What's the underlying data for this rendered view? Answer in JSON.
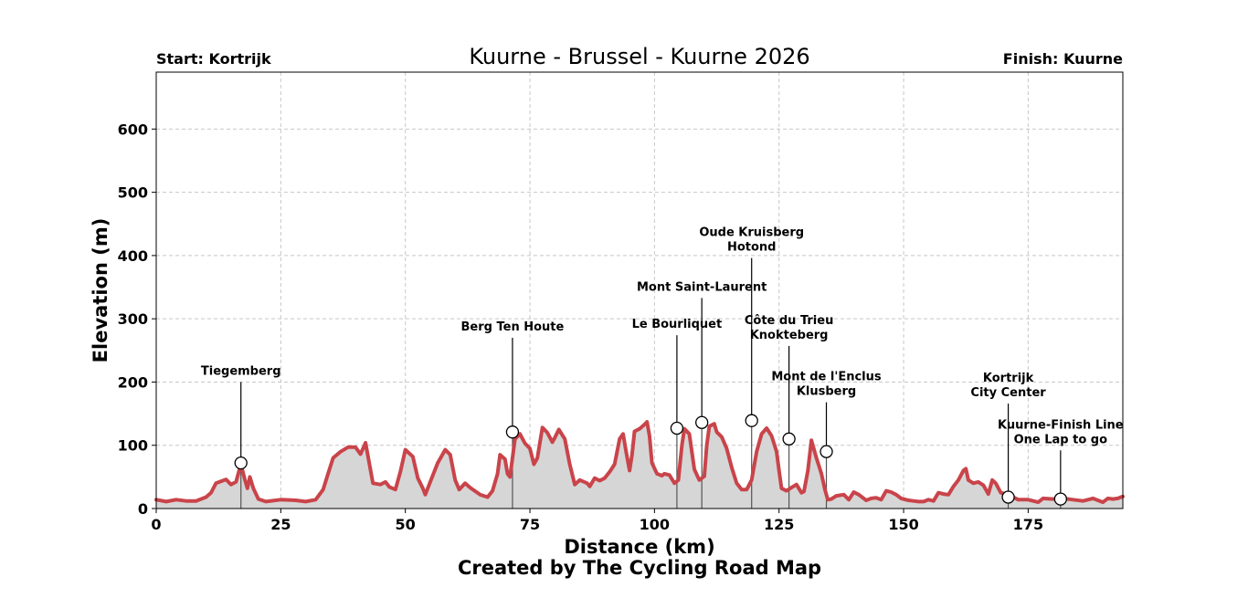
{
  "chart_data": {
    "type": "area",
    "title": "Kuurne - Brussel - Kuurne 2026",
    "start_label": "Start: Kortrijk",
    "finish_label": "Finish: Kuurne",
    "xlabel": "Distance (km)",
    "ylabel": "Elevation (m)",
    "credit": "Created by The Cycling Road Map",
    "xlim": [
      0,
      194
    ],
    "ylim": [
      0,
      690
    ],
    "xticks": [
      0,
      25,
      50,
      75,
      100,
      125,
      150,
      175
    ],
    "yticks": [
      0,
      100,
      200,
      300,
      400,
      500,
      600
    ],
    "grid": true,
    "line_color": "#c9444a",
    "fill_color": "#d6d6d6",
    "profile": [
      [
        0,
        14
      ],
      [
        2,
        11
      ],
      [
        4,
        14
      ],
      [
        6,
        12
      ],
      [
        8,
        12
      ],
      [
        10,
        18
      ],
      [
        11,
        25
      ],
      [
        12,
        40
      ],
      [
        14,
        46
      ],
      [
        15,
        38
      ],
      [
        16,
        42
      ],
      [
        17,
        70
      ],
      [
        17.8,
        45
      ],
      [
        18.3,
        32
      ],
      [
        18.8,
        50
      ],
      [
        19.5,
        32
      ],
      [
        20.5,
        15
      ],
      [
        22,
        11
      ],
      [
        25,
        14
      ],
      [
        28,
        13
      ],
      [
        30,
        11
      ],
      [
        32,
        14
      ],
      [
        33.5,
        30
      ],
      [
        34.5,
        55
      ],
      [
        35.5,
        80
      ],
      [
        37,
        90
      ],
      [
        38.5,
        97
      ],
      [
        40,
        97
      ],
      [
        41,
        86
      ],
      [
        42,
        104
      ],
      [
        42.8,
        70
      ],
      [
        43.5,
        40
      ],
      [
        45,
        38
      ],
      [
        46,
        42
      ],
      [
        46.8,
        34
      ],
      [
        48,
        30
      ],
      [
        49,
        58
      ],
      [
        50,
        93
      ],
      [
        51.5,
        82
      ],
      [
        52.5,
        48
      ],
      [
        53.5,
        32
      ],
      [
        54,
        22
      ],
      [
        55,
        42
      ],
      [
        56.5,
        72
      ],
      [
        58,
        93
      ],
      [
        59,
        85
      ],
      [
        60,
        45
      ],
      [
        60.8,
        30
      ],
      [
        62,
        40
      ],
      [
        63,
        33
      ],
      [
        65,
        22
      ],
      [
        66.5,
        18
      ],
      [
        67.5,
        28
      ],
      [
        68.5,
        55
      ],
      [
        69,
        85
      ],
      [
        70,
        78
      ],
      [
        70.5,
        55
      ],
      [
        71,
        50
      ],
      [
        72,
        110
      ],
      [
        73,
        118
      ],
      [
        74,
        103
      ],
      [
        75,
        95
      ],
      [
        75.8,
        70
      ],
      [
        76.5,
        80
      ],
      [
        77.5,
        128
      ],
      [
        78.5,
        120
      ],
      [
        79.5,
        105
      ],
      [
        80,
        112
      ],
      [
        80.8,
        125
      ],
      [
        82,
        110
      ],
      [
        83,
        70
      ],
      [
        84,
        38
      ],
      [
        85,
        45
      ],
      [
        86.5,
        40
      ],
      [
        87,
        35
      ],
      [
        88,
        48
      ],
      [
        89,
        44
      ],
      [
        90,
        48
      ],
      [
        91,
        58
      ],
      [
        92,
        70
      ],
      [
        93,
        110
      ],
      [
        93.7,
        118
      ],
      [
        94.3,
        90
      ],
      [
        95,
        60
      ],
      [
        95.5,
        85
      ],
      [
        96,
        122
      ],
      [
        97,
        126
      ],
      [
        98,
        133
      ],
      [
        98.5,
        137
      ],
      [
        99,
        115
      ],
      [
        99.5,
        72
      ],
      [
        100.5,
        55
      ],
      [
        101.5,
        52
      ],
      [
        102,
        55
      ],
      [
        103,
        53
      ],
      [
        104,
        40
      ],
      [
        104.8,
        45
      ],
      [
        105.5,
        100
      ],
      [
        106,
        126
      ],
      [
        107,
        118
      ],
      [
        108,
        62
      ],
      [
        109,
        45
      ],
      [
        110,
        51
      ],
      [
        110.5,
        100
      ],
      [
        111,
        130
      ],
      [
        112,
        134
      ],
      [
        112.5,
        121
      ],
      [
        113.5,
        113
      ],
      [
        114.5,
        95
      ],
      [
        115.5,
        65
      ],
      [
        116.5,
        40
      ],
      [
        117.5,
        30
      ],
      [
        118.5,
        30
      ],
      [
        119.5,
        45
      ],
      [
        120.5,
        90
      ],
      [
        121.5,
        118
      ],
      [
        122.5,
        127
      ],
      [
        123.5,
        115
      ],
      [
        124.5,
        90
      ],
      [
        125,
        60
      ],
      [
        125.5,
        32
      ],
      [
        126.5,
        28
      ],
      [
        127.5,
        33
      ],
      [
        128.5,
        38
      ],
      [
        129.5,
        25
      ],
      [
        130,
        27
      ],
      [
        130.8,
        60
      ],
      [
        131.5,
        108
      ],
      [
        132.5,
        80
      ],
      [
        133.5,
        55
      ],
      [
        134.2,
        30
      ],
      [
        134.8,
        14
      ],
      [
        135.5,
        15
      ],
      [
        136.5,
        20
      ],
      [
        138,
        22
      ],
      [
        139,
        14
      ],
      [
        140,
        26
      ],
      [
        141,
        22
      ],
      [
        142.5,
        13
      ],
      [
        143.5,
        16
      ],
      [
        144.5,
        17
      ],
      [
        145.5,
        14
      ],
      [
        146.5,
        28
      ],
      [
        147.5,
        26
      ],
      [
        148.5,
        22
      ],
      [
        149.5,
        16
      ],
      [
        151,
        13
      ],
      [
        152,
        12
      ],
      [
        153,
        11
      ],
      [
        154,
        11
      ],
      [
        155,
        14
      ],
      [
        156,
        12
      ],
      [
        157,
        25
      ],
      [
        158,
        23
      ],
      [
        159,
        22
      ],
      [
        160,
        35
      ],
      [
        161,
        45
      ],
      [
        162,
        60
      ],
      [
        162.5,
        63
      ],
      [
        163,
        45
      ],
      [
        164,
        40
      ],
      [
        165,
        42
      ],
      [
        166,
        37
      ],
      [
        167,
        23
      ],
      [
        167.8,
        45
      ],
      [
        168.5,
        40
      ],
      [
        169.5,
        25
      ],
      [
        171,
        22
      ],
      [
        173,
        14
      ],
      [
        175,
        14
      ],
      [
        177,
        10
      ],
      [
        178,
        16
      ],
      [
        180,
        15
      ],
      [
        182,
        16
      ],
      [
        184,
        14
      ],
      [
        186,
        12
      ],
      [
        188,
        16
      ],
      [
        190,
        10
      ],
      [
        191,
        16
      ],
      [
        192,
        15
      ],
      [
        193,
        16
      ],
      [
        194,
        19
      ]
    ],
    "climbs": [
      {
        "km": 17,
        "elev": 72,
        "name_lines": [
          "Tiegemberg"
        ],
        "label_elev": 200
      },
      {
        "km": 71.5,
        "elev": 121,
        "name_lines": [
          "Berg Ten Houte"
        ],
        "label_elev": 270
      },
      {
        "km": 104.5,
        "elev": 127,
        "name_lines": [
          "Le Bourliquet"
        ],
        "label_elev": 274
      },
      {
        "km": 109.5,
        "elev": 136,
        "name_lines": [
          "Mont Saint-Laurent"
        ],
        "label_elev": 333
      },
      {
        "km": 119.5,
        "elev": 139,
        "name_lines": [
          "Oude Kruisberg",
          "Hotond"
        ],
        "label_elev": 396
      },
      {
        "km": 127,
        "elev": 110,
        "name_lines": [
          "Côte du Trieu",
          "Knokteberg"
        ],
        "label_elev": 257
      },
      {
        "km": 134.5,
        "elev": 90,
        "name_lines": [
          "Mont de l'Enclus",
          "Klusberg"
        ],
        "label_elev": 168
      },
      {
        "km": 171,
        "elev": 18,
        "name_lines": [
          "Kortrijk",
          "City Center"
        ],
        "label_elev": 166
      },
      {
        "km": 181.5,
        "elev": 15,
        "name_lines": [
          "Kuurne-Finish Line",
          "One Lap to go"
        ],
        "label_elev": 92
      }
    ]
  }
}
